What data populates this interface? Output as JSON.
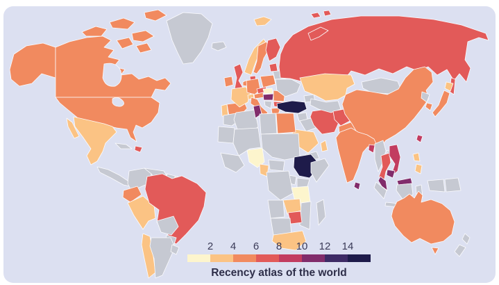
{
  "title": "Recency atlas of the world",
  "legend": {
    "ticks": [
      "2",
      "4",
      "6",
      "8",
      "10",
      "12",
      "14"
    ],
    "colors": [
      "#fdf5cd",
      "#fbc384",
      "#f18a5f",
      "#e25a59",
      "#c23c60",
      "#812c6b",
      "#3d2a65",
      "#1e1b4a"
    ],
    "no_data_color": "#c6c9d2"
  },
  "map": {
    "ocean_color": "#dce0f1",
    "border_color": "#ffffff",
    "countries": {
      "usa": 3,
      "canada": 3,
      "greenland": 0,
      "iceland": 0,
      "mexico": 2,
      "central-america": 0,
      "cuba": 0,
      "dominican-republic": 4,
      "colombia": 0,
      "venezuela": 0,
      "guyana": 0,
      "french-guiana": 2,
      "ecuador": 3,
      "peru": 2,
      "brazil": 4,
      "bolivia": 0,
      "paraguay": 0,
      "chile": 2,
      "argentina": 0,
      "uruguay": 0,
      "ireland": 3,
      "uk": 4,
      "portugal": 2,
      "spain": 3,
      "france": 2,
      "norway": 2,
      "sweden": 3,
      "finland": 4,
      "denmark": 4,
      "germany": 3,
      "benelux": 3,
      "poland": 3,
      "czechia": 4,
      "austria": 3,
      "switzerland": 2,
      "slovakia": 1,
      "hungary": 6,
      "italy": 3,
      "balkans-west": 0,
      "romania": 3,
      "bulgaria": 4,
      "greece": 3,
      "ukraine": 0,
      "belarus": 0,
      "baltics": 4,
      "russia": 4,
      "turkey": 8,
      "syria": 0,
      "iraq": 0,
      "iran": 4,
      "saudi-arabia": 2,
      "yemen": 0,
      "oman": 2,
      "egypt": 3,
      "caucasus": 0,
      "kazakhstan": 2,
      "central-asia": 0,
      "afghanistan": 4,
      "pakistan": 3,
      "mongolia": 0,
      "china": 3,
      "nepal": 0,
      "bangladesh": 5,
      "india": 3,
      "sri-lanka": 6,
      "myanmar": 0,
      "thailand": 4,
      "laos": 0,
      "vietnam": 5,
      "cambodia": 6,
      "malaysia": 6,
      "indonesia": 0,
      "papua-new-guinea": 0,
      "philippines": 2,
      "taiwan": 5,
      "north-korea": 0,
      "south-korea": 3,
      "japan": 3,
      "japan-hokkaido": 2,
      "morocco": 0,
      "algeria": 0,
      "tunisia": 6,
      "libya": 0,
      "mauritania": 0,
      "sahel": 0,
      "west-africa": 0,
      "sudan": 0,
      "nigeria": 1,
      "cameroon": 2,
      "central-african-republic": 0,
      "somalia": 0,
      "ethiopia": 8,
      "kenya": 0,
      "uganda": 0,
      "dr-congo": 0,
      "tanzania": 1,
      "angola": 0,
      "zambia": 2,
      "mozambique": 0,
      "zimbabwe": 4,
      "botswana": 0,
      "south-africa": 2,
      "madagascar": 0,
      "australia": 3,
      "new-zealand": 0
    }
  }
}
